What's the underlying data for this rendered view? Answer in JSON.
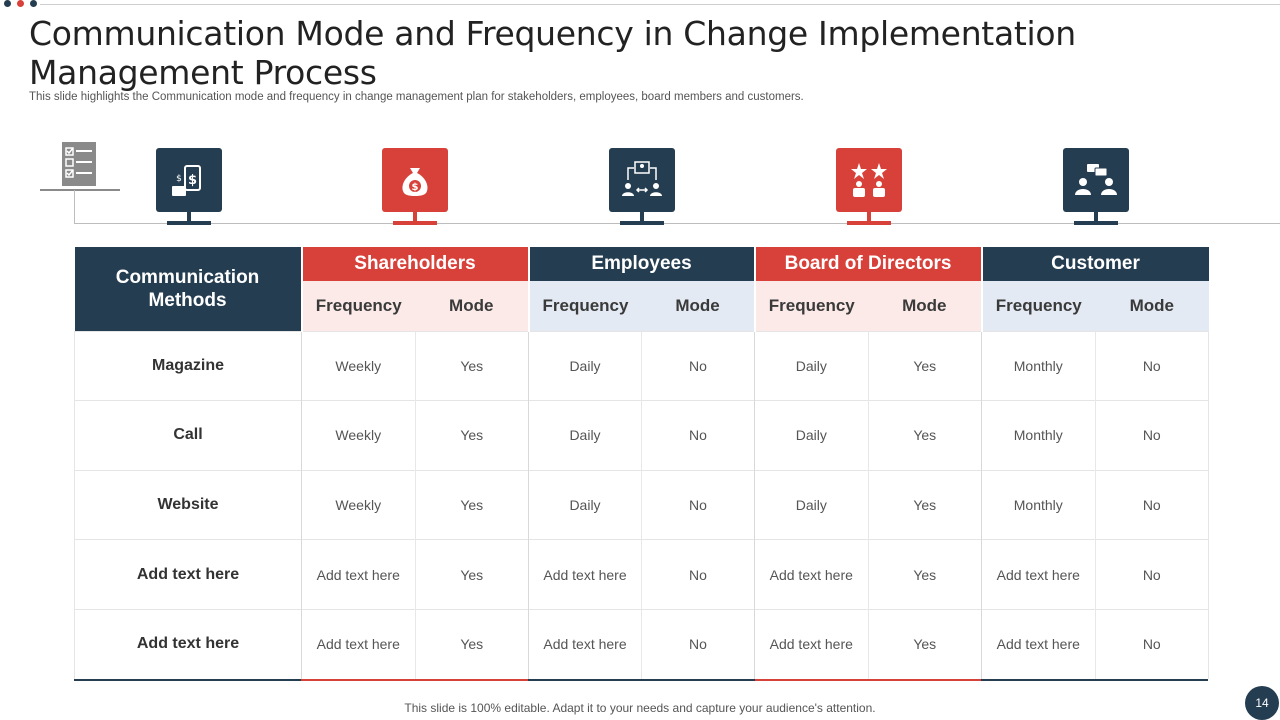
{
  "colors": {
    "navy": "#253d51",
    "red": "#d8413a",
    "pink_bg": "#fbeae8",
    "blue_bg": "#e3eaf3"
  },
  "title": "Communication Mode and Frequency in Change Implementation Management Process",
  "subtitle": "This slide highlights the Communication mode and frequency in change management plan for stakeholders, employees, board members and customers.",
  "icons": [
    {
      "name": "checklist-document-icon"
    },
    {
      "name": "mobile-payment-icon"
    },
    {
      "name": "money-bag-icon"
    },
    {
      "name": "team-exchange-icon"
    },
    {
      "name": "board-stars-icon"
    },
    {
      "name": "customer-chat-icon"
    }
  ],
  "table": {
    "methods_header": "Communication Methods",
    "groups": [
      "Shareholders",
      "Employees",
      "Board of Directors",
      "Customer"
    ],
    "sub_headers": [
      "Frequency",
      "Mode"
    ],
    "rows": [
      {
        "method": "Magazine",
        "cells": [
          "Weekly",
          "Yes",
          "Daily",
          "No",
          "Daily",
          "Yes",
          "Monthly",
          "No"
        ]
      },
      {
        "method": "Call",
        "cells": [
          "Weekly",
          "Yes",
          "Daily",
          "No",
          "Daily",
          "Yes",
          "Monthly",
          "No"
        ]
      },
      {
        "method": "Website",
        "cells": [
          "Weekly",
          "Yes",
          "Daily",
          "No",
          "Daily",
          "Yes",
          "Monthly",
          "No"
        ]
      },
      {
        "method": "Add text here",
        "cells": [
          "Add text here",
          "Yes",
          "Add text here",
          "No",
          "Add text here",
          "Yes",
          "Add text here",
          "No"
        ]
      },
      {
        "method": "Add text here",
        "cells": [
          "Add text here",
          "Yes",
          "Add text here",
          "No",
          "Add text here",
          "Yes",
          "Add text here",
          "No"
        ]
      }
    ]
  },
  "footer": "This slide is 100% editable. Adapt it to your needs and capture your audience's attention.",
  "page_number": "14"
}
